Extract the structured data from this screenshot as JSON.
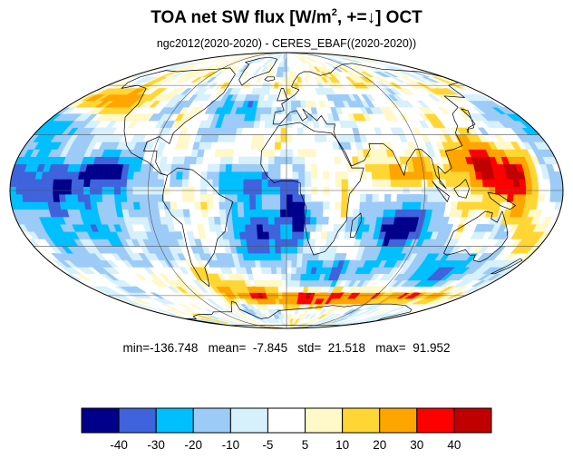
{
  "chart_data": {
    "type": "heatmap",
    "title": {
      "main": "TOA net SW flux [W/m",
      "sup": "2",
      "after": ", +=↓]  OCT"
    },
    "subtitle": "ngc2012(2020-2020) - CERES_EBAF((2020-2020))",
    "projection": "mollweide",
    "stats_text": "min=-136.748   mean=  -7.845   std=  21.518   max=  91.952",
    "stats": {
      "min": -136.748,
      "mean": -7.845,
      "std": 21.518,
      "max": 91.952
    },
    "colorbar": {
      "levels": [
        "-40",
        "-30",
        "-20",
        "-10",
        "-5",
        "5",
        "10",
        "20",
        "30",
        "40"
      ],
      "colors": [
        "#00008b",
        "#3f63dd",
        "#00bfff",
        "#9ccbf7",
        "#d6f0fc",
        "#ffffff",
        "#fff8c8",
        "#ffd633",
        "#ffa500",
        "#ff0000",
        "#c00000"
      ]
    }
  }
}
